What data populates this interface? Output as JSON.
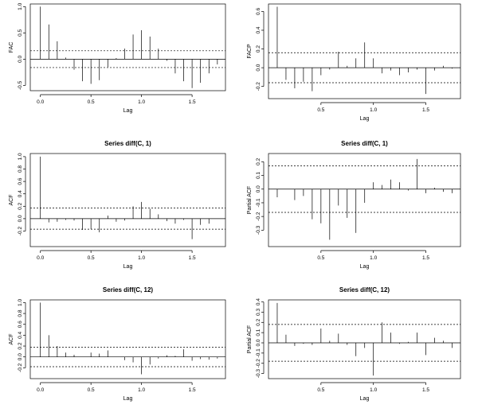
{
  "chart_data": [
    {
      "type": "bar",
      "title": "",
      "xlabel": "Lag",
      "ylabel": "FAC",
      "xlim": [
        -0.1,
        1.83
      ],
      "ylim": [
        -0.6,
        1.05
      ],
      "x_ticks": [
        0.0,
        0.5,
        1.0,
        1.5
      ],
      "x_tick_labels": [
        "0.0",
        "0.5",
        "1.0",
        "1.5"
      ],
      "y_ticks": [
        -0.5,
        0.0,
        0.5,
        1.0
      ],
      "y_tick_labels": [
        "-0.5",
        "0.0",
        "0.5",
        "1.0"
      ],
      "ci": [
        0.16,
        -0.16
      ],
      "lags": [
        0,
        0.0833,
        0.1667,
        0.25,
        0.3333,
        0.4167,
        0.5,
        0.5833,
        0.6667,
        0.75,
        0.8333,
        0.9167,
        1.0,
        1.0833,
        1.1667,
        1.25,
        1.3333,
        1.4167,
        1.5,
        1.5833,
        1.6667,
        1.75
      ],
      "values": [
        1.0,
        0.66,
        0.34,
        0.03,
        -0.2,
        -0.42,
        -0.47,
        -0.4,
        -0.15,
        0.02,
        0.2,
        0.47,
        0.55,
        0.43,
        0.2,
        -0.03,
        -0.27,
        -0.42,
        -0.55,
        -0.45,
        -0.27,
        -0.1
      ]
    },
    {
      "type": "bar",
      "title": "",
      "xlabel": "Lag",
      "ylabel": "FACP",
      "xlim": [
        0.0,
        1.83
      ],
      "ylim": [
        -0.33,
        0.68
      ],
      "x_ticks": [
        0.5,
        1.0,
        1.5
      ],
      "x_tick_labels": [
        "0.5",
        "1.0",
        "1.5"
      ],
      "y_ticks": [
        -0.2,
        0.0,
        0.2,
        0.4,
        0.6
      ],
      "y_tick_labels": [
        "-0.2",
        "0.0",
        "0.2",
        "0.4",
        "0.6"
      ],
      "ci": [
        0.16,
        -0.16
      ],
      "lags": [
        0.0833,
        0.1667,
        0.25,
        0.3333,
        0.4167,
        0.5,
        0.5833,
        0.6667,
        0.75,
        0.8333,
        0.9167,
        1.0,
        1.0833,
        1.1667,
        1.25,
        1.3333,
        1.4167,
        1.5,
        1.5833,
        1.6667,
        1.75
      ],
      "values": [
        0.65,
        -0.13,
        -0.22,
        -0.15,
        -0.25,
        -0.08,
        -0.02,
        0.17,
        0.02,
        0.1,
        0.27,
        0.1,
        -0.06,
        -0.03,
        -0.08,
        -0.05,
        -0.02,
        -0.28,
        -0.03,
        0.02,
        -0.01
      ]
    },
    {
      "type": "bar",
      "title": "Series  diff(C, 1)",
      "xlabel": "Lag",
      "ylabel": "ACF",
      "xlim": [
        -0.1,
        1.83
      ],
      "ylim": [
        -0.45,
        1.05
      ],
      "x_ticks": [
        0.0,
        0.5,
        1.0,
        1.5
      ],
      "x_tick_labels": [
        "0.0",
        "0.5",
        "1.0",
        "1.5"
      ],
      "y_ticks": [
        -0.2,
        0.0,
        0.2,
        0.4,
        0.6,
        0.8,
        1.0
      ],
      "y_tick_labels": [
        "-0.2",
        "0.0",
        "0.2",
        "0.4",
        "0.6",
        "0.8",
        "1.0"
      ],
      "ci": [
        0.17,
        -0.17
      ],
      "lags": [
        0,
        0.0833,
        0.1667,
        0.25,
        0.3333,
        0.4167,
        0.5,
        0.5833,
        0.6667,
        0.75,
        0.8333,
        0.9167,
        1.0,
        1.0833,
        1.1667,
        1.25,
        1.3333,
        1.4167,
        1.5,
        1.5833,
        1.6667
      ],
      "values": [
        1.0,
        -0.06,
        -0.05,
        -0.02,
        -0.03,
        -0.18,
        -0.17,
        -0.22,
        0.05,
        -0.05,
        -0.03,
        0.2,
        0.27,
        0.16,
        0.07,
        -0.04,
        -0.08,
        -0.02,
        -0.33,
        -0.1,
        -0.08
      ]
    },
    {
      "type": "bar",
      "title": "Series  diff(C, 1)",
      "xlabel": "Lag",
      "ylabel": "Partial ACF",
      "xlim": [
        0.0,
        1.83
      ],
      "ylim": [
        -0.42,
        0.26
      ],
      "x_ticks": [
        0.5,
        1.0,
        1.5
      ],
      "x_tick_labels": [
        "0.5",
        "1.0",
        "1.5"
      ],
      "y_ticks": [
        -0.3,
        -0.2,
        -0.1,
        0.0,
        0.1,
        0.2
      ],
      "y_tick_labels": [
        "-0.3",
        "-0.2",
        "-0.1",
        "0.0",
        "0.1",
        "0.2"
      ],
      "ci": [
        0.17,
        -0.17
      ],
      "lags": [
        0.0833,
        0.1667,
        0.25,
        0.3333,
        0.4167,
        0.5,
        0.5833,
        0.6667,
        0.75,
        0.8333,
        0.9167,
        1.0,
        1.0833,
        1.1667,
        1.25,
        1.3333,
        1.4167,
        1.5,
        1.5833,
        1.6667,
        1.75
      ],
      "values": [
        -0.06,
        0.0,
        -0.08,
        -0.05,
        -0.22,
        -0.25,
        -0.37,
        -0.12,
        -0.21,
        -0.32,
        -0.1,
        0.05,
        0.03,
        0.07,
        0.05,
        -0.01,
        0.22,
        -0.03,
        0.01,
        -0.02,
        -0.03
      ]
    },
    {
      "type": "bar",
      "title": "Series  diff(C, 12)",
      "xlabel": "Lag",
      "ylabel": "ACF",
      "xlim": [
        -0.1,
        1.83
      ],
      "ylim": [
        -0.4,
        1.05
      ],
      "x_ticks": [
        0.0,
        0.5,
        1.0,
        1.5
      ],
      "x_tick_labels": [
        "0.0",
        "0.5",
        "1.0",
        "1.5"
      ],
      "y_ticks": [
        -0.2,
        0.0,
        0.2,
        0.4,
        0.6,
        0.8,
        1.0
      ],
      "y_tick_labels": [
        "-0.2",
        "0.0",
        "0.2",
        "0.4",
        "0.6",
        "0.8",
        "1.0"
      ],
      "ci": [
        0.18,
        -0.18
      ],
      "lags": [
        0,
        0.0833,
        0.1667,
        0.25,
        0.3333,
        0.4167,
        0.5,
        0.5833,
        0.6667,
        0.75,
        0.8333,
        0.9167,
        1.0,
        1.0833,
        1.1667,
        1.25,
        1.3333,
        1.4167,
        1.5,
        1.5833,
        1.6667,
        1.75
      ],
      "values": [
        1.0,
        0.4,
        0.2,
        0.08,
        0.04,
        0.0,
        0.08,
        0.06,
        0.12,
        0.0,
        -0.06,
        -0.1,
        -0.32,
        -0.14,
        -0.03,
        0.03,
        0.02,
        0.14,
        -0.07,
        -0.04,
        -0.05,
        -0.03
      ]
    },
    {
      "type": "bar",
      "title": "Series  diff(C, 12)",
      "xlabel": "Lag",
      "ylabel": "Partial ACF",
      "xlim": [
        0.0,
        1.83
      ],
      "ylim": [
        -0.35,
        0.42
      ],
      "x_ticks": [
        0.5,
        1.0,
        1.5
      ],
      "x_tick_labels": [
        "0.5",
        "1.0",
        "1.5"
      ],
      "y_ticks": [
        -0.3,
        -0.2,
        -0.1,
        0.0,
        0.1,
        0.2,
        0.3,
        0.4
      ],
      "y_tick_labels": [
        "-0.3",
        "-0.2",
        "-0.1",
        "0.0",
        "0.1",
        "0.2",
        "0.3",
        "0.4"
      ],
      "ci": [
        0.18,
        -0.18
      ],
      "lags": [
        0.0833,
        0.1667,
        0.25,
        0.3333,
        0.4167,
        0.5,
        0.5833,
        0.6667,
        0.75,
        0.8333,
        0.9167,
        1.0,
        1.0833,
        1.1667,
        1.25,
        1.3333,
        1.4167,
        1.5,
        1.5833,
        1.6667,
        1.75
      ],
      "values": [
        0.39,
        0.08,
        -0.03,
        -0.01,
        -0.02,
        0.14,
        0.02,
        0.09,
        -0.02,
        -0.13,
        -0.05,
        -0.32,
        0.2,
        0.1,
        -0.01,
        0.01,
        0.1,
        -0.12,
        0.05,
        0.02,
        -0.05
      ]
    }
  ]
}
